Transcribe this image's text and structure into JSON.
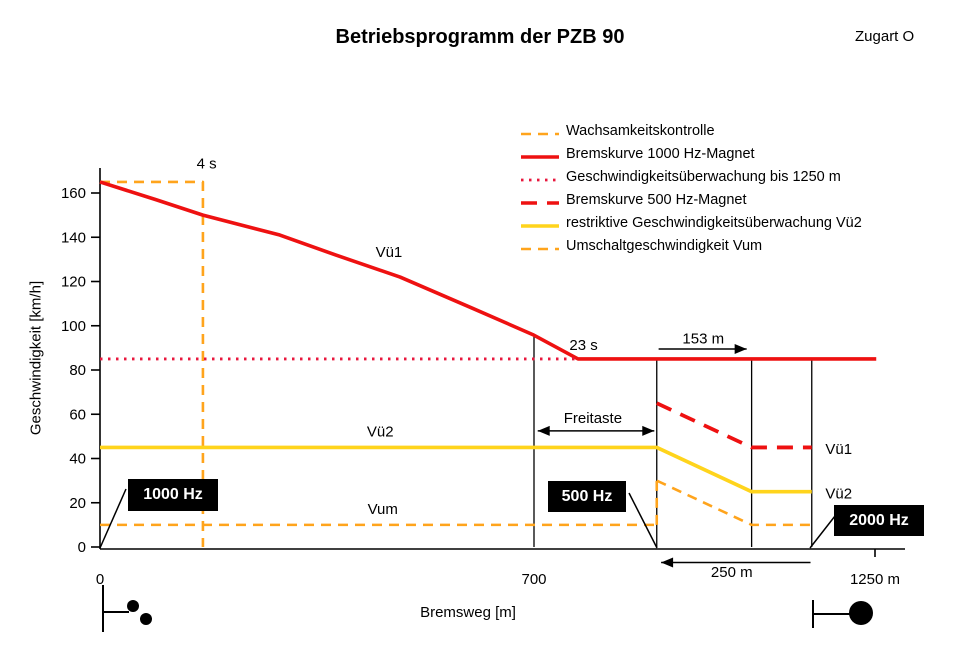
{
  "header": {
    "title": "Betriebsprogramm der PZB 90",
    "train_type": "Zugart O"
  },
  "colors": {
    "red": "#ee1111",
    "red_dotted": "#e8173d",
    "orange": "#ffa41c",
    "yellow": "#ffd41c",
    "black": "#000000",
    "box_bg": "#000000",
    "box_text": "#ffffff"
  },
  "legend": [
    {
      "label": "Wachsamkeitskontrolle",
      "style": "orange-dash"
    },
    {
      "label": "Bremskurve 1000 Hz-Magnet",
      "style": "red-solid"
    },
    {
      "label": "Geschwindigkeitsüberwachung bis 1250 m",
      "style": "red-dot"
    },
    {
      "label": "Bremskurve 500 Hz-Magnet",
      "style": "red-dash"
    },
    {
      "label": "restriktive Geschwindigkeitsüberwachung Vü2",
      "style": "yellow-solid"
    },
    {
      "label": "Umschaltgeschwindigkeit Vum",
      "style": "orange-dash"
    }
  ],
  "magnets": {
    "hz1000": "1000 Hz",
    "hz500": "500 Hz",
    "hz2000": "2000 Hz"
  },
  "chart_data": {
    "type": "line",
    "title": "Betriebsprogramm der PZB 90",
    "xlabel": "Bremsweg [m]",
    "ylabel": "Geschwindigkeit [km/h]",
    "xlim": [
      0,
      1300
    ],
    "ylim": [
      0,
      172
    ],
    "grid": false,
    "legend_position": "top-right",
    "y_ticks": [
      0,
      20,
      40,
      60,
      80,
      100,
      120,
      140,
      160
    ],
    "x_ticks": [
      {
        "m": 0,
        "label": "0",
        "tick_below": false
      },
      {
        "m": 700,
        "label": "700",
        "tick_below": false
      },
      {
        "m": 1250,
        "label": "1250 m",
        "tick_below": true
      }
    ],
    "series": [
      {
        "id": "wachsamkeitskontrolle",
        "name": "Wachsamkeitskontrolle",
        "style": "orange-dash",
        "points": [
          [
            0,
            165
          ],
          [
            166,
            165
          ],
          [
            166,
            0
          ]
        ]
      },
      {
        "id": "bremskurve-1000hz",
        "name": "Bremskurve 1000 Hz-Magnet",
        "style": "red-solid",
        "points": [
          [
            0,
            165
          ],
          [
            90,
            157
          ],
          [
            166,
            150
          ],
          [
            290,
            141
          ],
          [
            380,
            132
          ],
          [
            484,
            122
          ],
          [
            600,
            108
          ],
          [
            698,
            96
          ],
          [
            771,
            85
          ],
          [
            1252,
            85
          ]
        ]
      },
      {
        "id": "geschwindigkeitsueberwachung-85",
        "name": "Geschwindigkeitsüberwachung bis 1250 m",
        "style": "red-dot",
        "points": [
          [
            0,
            85
          ],
          [
            771,
            85
          ]
        ]
      },
      {
        "id": "bremskurve-500hz",
        "name": "Bremskurve 500 Hz-Magnet",
        "style": "red-dash",
        "points": [
          [
            898,
            65
          ],
          [
            1051,
            45
          ],
          [
            1148,
            45
          ]
        ]
      },
      {
        "id": "restriktive-ueberwachung-vue2",
        "name": "restriktive Geschwindigkeitsüberwachung Vü2",
        "style": "yellow-solid",
        "points": [
          [
            0,
            45
          ],
          [
            898,
            45
          ],
          [
            1051,
            25
          ],
          [
            1148,
            25
          ]
        ]
      },
      {
        "id": "vum-vor-500hz",
        "name": "Umschaltgeschwindigkeit Vum",
        "style": "orange-dash",
        "points": [
          [
            0,
            10
          ],
          [
            898,
            10
          ]
        ]
      },
      {
        "id": "vum-sprung-500hz",
        "name": "Vum Sprung am 500 Hz-Magnet",
        "style": "orange-dash",
        "points": [
          [
            898,
            10
          ],
          [
            898,
            30
          ]
        ]
      },
      {
        "id": "vum-nach-500hz",
        "name": "Umschaltgeschwindigkeit Vum nach 500 Hz",
        "style": "orange-dash",
        "points": [
          [
            898,
            30
          ],
          [
            1051,
            10
          ],
          [
            1148,
            10
          ]
        ]
      }
    ],
    "guides": [
      {
        "m": 700,
        "v_top": 96
      },
      {
        "m": 898,
        "v_top": 85
      },
      {
        "m": 1051,
        "v_top": 85
      },
      {
        "m": 1148,
        "v_top": 85
      }
    ],
    "arrows": [
      {
        "label": "153 m",
        "from_m": 901,
        "to_m": 1043,
        "v": 89.5,
        "heads": "end"
      },
      {
        "label": "Freitaste",
        "from_m": 706,
        "to_m": 894,
        "v": 52.5,
        "heads": "both"
      },
      {
        "label": "250 m",
        "from_m": 1146,
        "to_m": 905,
        "v": -7,
        "heads": "end"
      }
    ],
    "texts": [
      {
        "t": "4 s",
        "m": 172,
        "v": 171,
        "anchor": "middle"
      },
      {
        "t": "23 s",
        "m": 780,
        "v": 89,
        "anchor": "middle"
      },
      {
        "t": "Vü1",
        "m": 466,
        "v": 131,
        "anchor": "middle"
      },
      {
        "t": "Vü2",
        "m": 452,
        "v": 50,
        "anchor": "middle"
      },
      {
        "t": "Vum",
        "m": 456,
        "v": 15,
        "anchor": "middle"
      },
      {
        "t": "153 m",
        "m": 973,
        "v": 92,
        "anchor": "middle"
      },
      {
        "t": "Freitaste",
        "m": 795,
        "v": 56,
        "anchor": "middle"
      },
      {
        "t": "250 m",
        "m": 1019,
        "v": -13.5,
        "anchor": "middle"
      },
      {
        "t": "Vü1",
        "m": 1170,
        "v": 42,
        "anchor": "start"
      },
      {
        "t": "Vü2",
        "m": 1170,
        "v": 22,
        "anchor": "start"
      }
    ]
  }
}
